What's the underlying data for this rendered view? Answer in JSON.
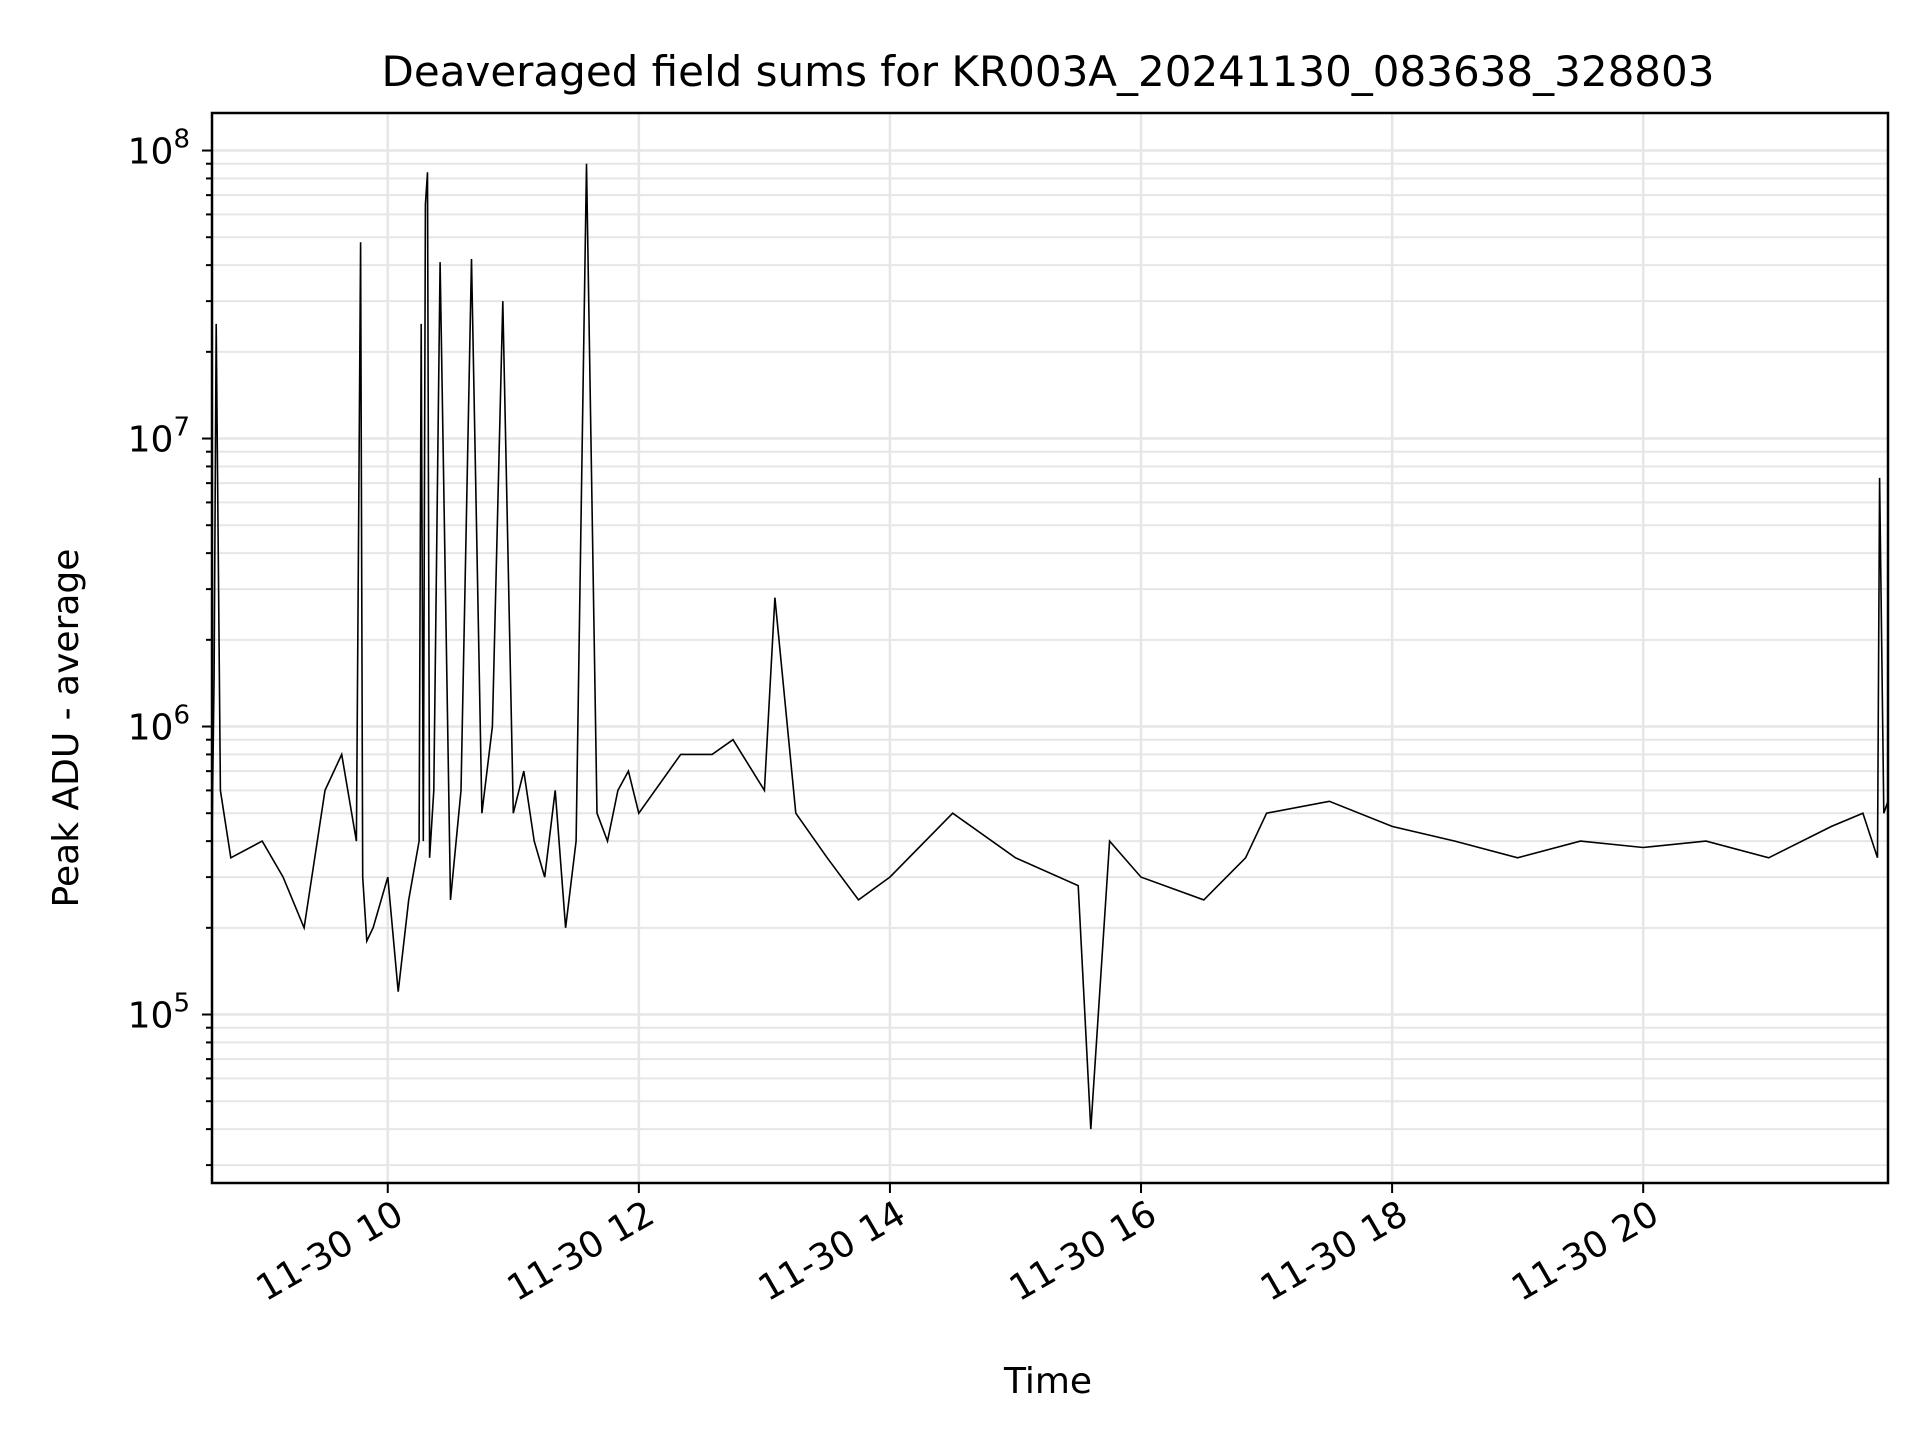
{
  "chart_data": {
    "type": "line",
    "title": "Deaveraged field sums for KR003A_20241130_083638_328803",
    "xlabel": "Time",
    "ylabel": "Peak ADU - average",
    "yscale": "log",
    "ylim": [
      26000,
      135000000
    ],
    "xlim": [
      "2024-11-30T08:36",
      "2024-11-30T21:57"
    ],
    "grid": true,
    "line_color": "#000000",
    "grid_color": "#e6e6e6",
    "x_tick_labels": [
      "11-30 10",
      "11-30 12",
      "11-30 14",
      "11-30 16",
      "11-30 18",
      "11-30 20"
    ],
    "x_tick_times": [
      "2024-11-30T10:00",
      "2024-11-30T12:00",
      "2024-11-30T14:00",
      "2024-11-30T16:00",
      "2024-11-30T18:00",
      "2024-11-30T20:00"
    ],
    "y_ticks": [
      {
        "base": "10",
        "exp": "5",
        "value": 100000
      },
      {
        "base": "10",
        "exp": "6",
        "value": 1000000
      },
      {
        "base": "10",
        "exp": "7",
        "value": 10000000
      },
      {
        "base": "10",
        "exp": "8",
        "value": 100000000
      }
    ],
    "series": [
      {
        "x": [
          "2024-11-30T08:36",
          "2024-11-30T08:37",
          "2024-11-30T08:38",
          "2024-11-30T08:40",
          "2024-11-30T08:45",
          "2024-11-30T09:00",
          "2024-11-30T09:10",
          "2024-11-30T09:20",
          "2024-11-30T09:30",
          "2024-11-30T09:38",
          "2024-11-30T09:45",
          "2024-11-30T09:47",
          "2024-11-30T09:48",
          "2024-11-30T09:50",
          "2024-11-30T09:53",
          "2024-11-30T10:00",
          "2024-11-30T10:05",
          "2024-11-30T10:10",
          "2024-11-30T10:15",
          "2024-11-30T10:16",
          "2024-11-30T10:17",
          "2024-11-30T10:18",
          "2024-11-30T10:19",
          "2024-11-30T10:20",
          "2024-11-30T10:22",
          "2024-11-30T10:25",
          "2024-11-30T10:30",
          "2024-11-30T10:35",
          "2024-11-30T10:40",
          "2024-11-30T10:45",
          "2024-11-30T10:50",
          "2024-11-30T10:55",
          "2024-11-30T11:00",
          "2024-11-30T11:05",
          "2024-11-30T11:10",
          "2024-11-30T11:15",
          "2024-11-30T11:20",
          "2024-11-30T11:25",
          "2024-11-30T11:30",
          "2024-11-30T11:35",
          "2024-11-30T11:40",
          "2024-11-30T11:45",
          "2024-11-30T11:50",
          "2024-11-30T11:55",
          "2024-11-30T12:00",
          "2024-11-30T12:20",
          "2024-11-30T12:35",
          "2024-11-30T12:45",
          "2024-11-30T13:00",
          "2024-11-30T13:05",
          "2024-11-30T13:15",
          "2024-11-30T13:30",
          "2024-11-30T13:45",
          "2024-11-30T14:00",
          "2024-11-30T14:30",
          "2024-11-30T15:00",
          "2024-11-30T15:30",
          "2024-11-30T15:36",
          "2024-11-30T15:45",
          "2024-11-30T16:00",
          "2024-11-30T16:30",
          "2024-11-30T16:50",
          "2024-11-30T17:00",
          "2024-11-30T17:30",
          "2024-11-30T18:00",
          "2024-11-30T18:30",
          "2024-11-30T19:00",
          "2024-11-30T19:30",
          "2024-11-30T20:00",
          "2024-11-30T20:30",
          "2024-11-30T21:00",
          "2024-11-30T21:30",
          "2024-11-30T21:45",
          "2024-11-30T21:52",
          "2024-11-30T21:53",
          "2024-11-30T21:55",
          "2024-11-30T21:57"
        ],
        "y": [
          400000,
          1500000,
          25000000,
          600000,
          350000,
          400000,
          300000,
          200000,
          600000,
          800000,
          400000,
          48000000,
          300000,
          180000,
          200000,
          300000,
          120000,
          250000,
          400000,
          25000000,
          400000,
          65000000,
          84000000,
          350000,
          600000,
          41000000,
          250000,
          600000,
          42000000,
          500000,
          1000000,
          30000000,
          500000,
          700000,
          400000,
          300000,
          600000,
          200000,
          400000,
          90000000,
          500000,
          400000,
          600000,
          700000,
          500000,
          800000,
          800000,
          900000,
          600000,
          2800000,
          500000,
          350000,
          250000,
          300000,
          500000,
          350000,
          280000,
          40000,
          400000,
          300000,
          250000,
          350000,
          500000,
          550000,
          450000,
          400000,
          350000,
          400000,
          380000,
          400000,
          350000,
          450000,
          500000,
          350000,
          7300000,
          500000,
          550000
        ]
      }
    ]
  }
}
